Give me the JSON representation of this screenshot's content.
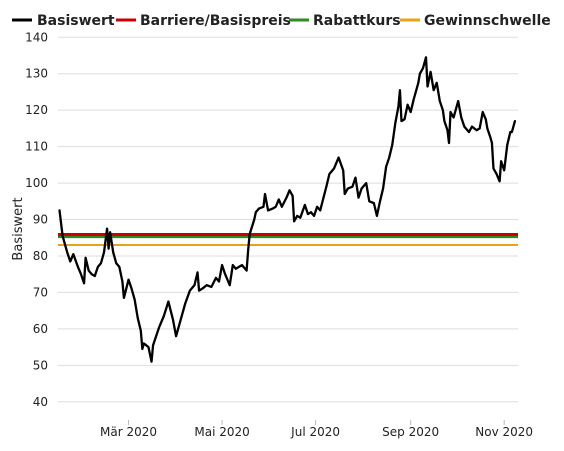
{
  "chart_data": {
    "type": "line",
    "title": "",
    "xlabel": "",
    "ylabel": "Basiswert",
    "ylim": [
      35,
      142
    ],
    "xlim": [
      "2020-01-15",
      "2020-11-10"
    ],
    "yticks": [
      40,
      50,
      60,
      70,
      80,
      90,
      100,
      110,
      120,
      130,
      140
    ],
    "xticks": [
      {
        "label": "Mär 2020",
        "date": "2020-03-01"
      },
      {
        "label": "Mai 2020",
        "date": "2020-05-01"
      },
      {
        "label": "Jul 2020",
        "date": "2020-07-01"
      },
      {
        "label": "Sep 2020",
        "date": "2020-09-01"
      },
      {
        "label": "Nov 2020",
        "date": "2020-11-01"
      }
    ],
    "grid": "horizontal",
    "legend_position": "top",
    "series": [
      {
        "name": "Basiswert",
        "color": "#000000",
        "points": [
          [
            "2020-01-16",
            92.5
          ],
          [
            "2020-01-18",
            85.5
          ],
          [
            "2020-01-21",
            81.0
          ],
          [
            "2020-01-23",
            78.5
          ],
          [
            "2020-01-25",
            80.5
          ],
          [
            "2020-01-28",
            77.0
          ],
          [
            "2020-01-30",
            75.0
          ],
          [
            "2020-02-01",
            72.5
          ],
          [
            "2020-02-02",
            79.5
          ],
          [
            "2020-02-04",
            76.0
          ],
          [
            "2020-02-06",
            75.0
          ],
          [
            "2020-02-08",
            74.5
          ],
          [
            "2020-02-10",
            77.0
          ],
          [
            "2020-02-12",
            78.0
          ],
          [
            "2020-02-14",
            81.0
          ],
          [
            "2020-02-16",
            87.5
          ],
          [
            "2020-02-17",
            82.0
          ],
          [
            "2020-02-18",
            86.5
          ],
          [
            "2020-02-20",
            81.0
          ],
          [
            "2020-02-22",
            78.0
          ],
          [
            "2020-02-24",
            77.0
          ],
          [
            "2020-02-26",
            73.0
          ],
          [
            "2020-02-27",
            68.5
          ],
          [
            "2020-03-01",
            73.5
          ],
          [
            "2020-03-03",
            71.0
          ],
          [
            "2020-03-05",
            68.0
          ],
          [
            "2020-03-07",
            63.0
          ],
          [
            "2020-03-09",
            59.5
          ],
          [
            "2020-03-10",
            54.5
          ],
          [
            "2020-03-11",
            56.0
          ],
          [
            "2020-03-14",
            55.0
          ],
          [
            "2020-03-16",
            51.0
          ],
          [
            "2020-03-17",
            55.5
          ],
          [
            "2020-03-19",
            58.0
          ],
          [
            "2020-03-21",
            60.5
          ],
          [
            "2020-03-24",
            63.5
          ],
          [
            "2020-03-27",
            67.5
          ],
          [
            "2020-03-30",
            62.5
          ],
          [
            "2020-04-01",
            58.0
          ],
          [
            "2020-04-04",
            62.5
          ],
          [
            "2020-04-07",
            67.0
          ],
          [
            "2020-04-10",
            70.5
          ],
          [
            "2020-04-13",
            72.0
          ],
          [
            "2020-04-15",
            75.5
          ],
          [
            "2020-04-16",
            70.5
          ],
          [
            "2020-04-18",
            71.0
          ],
          [
            "2020-04-21",
            72.0
          ],
          [
            "2020-04-24",
            71.5
          ],
          [
            "2020-04-27",
            74.0
          ],
          [
            "2020-04-29",
            73.0
          ],
          [
            "2020-05-01",
            77.5
          ],
          [
            "2020-05-03",
            75.0
          ],
          [
            "2020-05-06",
            72.0
          ],
          [
            "2020-05-08",
            77.5
          ],
          [
            "2020-05-10",
            76.5
          ],
          [
            "2020-05-12",
            77.0
          ],
          [
            "2020-05-14",
            77.5
          ],
          [
            "2020-05-17",
            76.0
          ],
          [
            "2020-05-18",
            81.5
          ],
          [
            "2020-05-19",
            86.0
          ],
          [
            "2020-05-22",
            90.0
          ],
          [
            "2020-05-23",
            92.0
          ],
          [
            "2020-05-25",
            93.0
          ],
          [
            "2020-05-28",
            93.5
          ],
          [
            "2020-05-29",
            97.0
          ],
          [
            "2020-05-31",
            92.5
          ],
          [
            "2020-06-03",
            93.0
          ],
          [
            "2020-06-05",
            93.5
          ],
          [
            "2020-06-07",
            95.5
          ],
          [
            "2020-06-09",
            93.5
          ],
          [
            "2020-06-12",
            96.0
          ],
          [
            "2020-06-14",
            98.0
          ],
          [
            "2020-06-16",
            96.5
          ],
          [
            "2020-06-17",
            89.5
          ],
          [
            "2020-06-19",
            91.0
          ],
          [
            "2020-06-21",
            90.5
          ],
          [
            "2020-06-24",
            94.0
          ],
          [
            "2020-06-26",
            91.5
          ],
          [
            "2020-06-28",
            92.0
          ],
          [
            "2020-06-30",
            91.0
          ],
          [
            "2020-07-02",
            93.5
          ],
          [
            "2020-07-04",
            92.5
          ],
          [
            "2020-07-08",
            99.0
          ],
          [
            "2020-07-10",
            102.5
          ],
          [
            "2020-07-13",
            104.0
          ],
          [
            "2020-07-16",
            107.0
          ],
          [
            "2020-07-19",
            103.5
          ],
          [
            "2020-07-20",
            97.0
          ],
          [
            "2020-07-22",
            98.5
          ],
          [
            "2020-07-25",
            99.0
          ],
          [
            "2020-07-27",
            101.5
          ],
          [
            "2020-07-29",
            96.0
          ],
          [
            "2020-07-31",
            98.5
          ],
          [
            "2020-08-03",
            100.0
          ],
          [
            "2020-08-05",
            95.0
          ],
          [
            "2020-08-08",
            94.5
          ],
          [
            "2020-08-10",
            91.0
          ],
          [
            "2020-08-12",
            95.0
          ],
          [
            "2020-08-14",
            98.5
          ],
          [
            "2020-08-16",
            104.5
          ],
          [
            "2020-08-18",
            107.0
          ],
          [
            "2020-08-20",
            110.5
          ],
          [
            "2020-08-22",
            116.5
          ],
          [
            "2020-08-24",
            121.0
          ],
          [
            "2020-08-25",
            125.5
          ],
          [
            "2020-08-26",
            117.0
          ],
          [
            "2020-08-28",
            117.5
          ],
          [
            "2020-08-30",
            121.5
          ],
          [
            "2020-09-01",
            119.5
          ],
          [
            "2020-09-03",
            123.0
          ],
          [
            "2020-09-06",
            127.5
          ],
          [
            "2020-09-07",
            130.0
          ],
          [
            "2020-09-09",
            131.5
          ],
          [
            "2020-09-11",
            134.5
          ],
          [
            "2020-09-12",
            126.5
          ],
          [
            "2020-09-14",
            130.5
          ],
          [
            "2020-09-16",
            125.5
          ],
          [
            "2020-09-18",
            127.5
          ],
          [
            "2020-09-20",
            122.5
          ],
          [
            "2020-09-22",
            120.0
          ],
          [
            "2020-09-23",
            117.0
          ],
          [
            "2020-09-25",
            114.5
          ],
          [
            "2020-09-26",
            111.0
          ],
          [
            "2020-09-27",
            119.5
          ],
          [
            "2020-09-29",
            118.0
          ],
          [
            "2020-10-02",
            122.5
          ],
          [
            "2020-10-04",
            118.0
          ],
          [
            "2020-10-06",
            115.5
          ],
          [
            "2020-10-09",
            114.0
          ],
          [
            "2020-10-11",
            115.5
          ],
          [
            "2020-10-14",
            114.5
          ],
          [
            "2020-10-16",
            115.0
          ],
          [
            "2020-10-18",
            119.5
          ],
          [
            "2020-10-20",
            117.5
          ],
          [
            "2020-10-21",
            115.0
          ],
          [
            "2020-10-23",
            112.5
          ],
          [
            "2020-10-24",
            111.0
          ],
          [
            "2020-10-25",
            104.0
          ],
          [
            "2020-10-27",
            102.5
          ],
          [
            "2020-10-29",
            100.5
          ],
          [
            "2020-10-30",
            106.0
          ],
          [
            "2020-11-01",
            103.5
          ],
          [
            "2020-11-03",
            110.5
          ],
          [
            "2020-11-05",
            114.0
          ],
          [
            "2020-11-06",
            114.0
          ],
          [
            "2020-11-08",
            117.0
          ]
        ]
      },
      {
        "name": "Barriere/Basispreis",
        "color": "#cc0000",
        "value": 85.9
      },
      {
        "name": "Rabattkurs",
        "color": "#2e8b1f",
        "value": 85.3
      },
      {
        "name": "Gewinnschwelle",
        "color": "#e8a317",
        "value": 83.0
      }
    ]
  }
}
